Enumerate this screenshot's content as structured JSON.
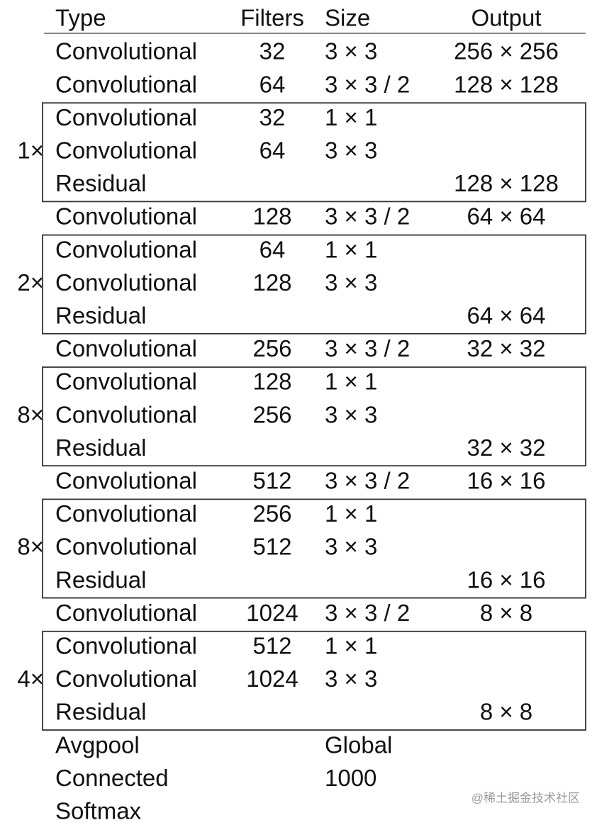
{
  "table": {
    "header": [
      "Type",
      "Filters",
      "Size",
      "Output"
    ],
    "body": [
      {
        "type": "Convolutional",
        "filters": "32",
        "size": "3 × 3",
        "output": "256 × 256"
      },
      {
        "type": "Convolutional",
        "filters": "64",
        "size": "3 × 3 / 2",
        "output": "128 × 128"
      },
      {
        "repeat": "1×",
        "rows": [
          {
            "type": "Convolutional",
            "filters": "32",
            "size": "1 × 1"
          },
          {
            "type": "Convolutional",
            "filters": "64",
            "size": "3 × 3"
          },
          {
            "type": "Residual",
            "output": "128 × 128"
          }
        ]
      },
      {
        "type": "Convolutional",
        "filters": "128",
        "size": "3 × 3 / 2",
        "output": "64 × 64"
      },
      {
        "repeat": "2×",
        "rows": [
          {
            "type": "Convolutional",
            "filters": "64",
            "size": "1 × 1"
          },
          {
            "type": "Convolutional",
            "filters": "128",
            "size": "3 × 3"
          },
          {
            "type": "Residual",
            "output": "64 × 64"
          }
        ]
      },
      {
        "type": "Convolutional",
        "filters": "256",
        "size": "3 × 3 / 2",
        "output": "32 × 32"
      },
      {
        "repeat": "8×",
        "rows": [
          {
            "type": "Convolutional",
            "filters": "128",
            "size": "1 × 1"
          },
          {
            "type": "Convolutional",
            "filters": "256",
            "size": "3 × 3"
          },
          {
            "type": "Residual",
            "output": "32 × 32"
          }
        ]
      },
      {
        "type": "Convolutional",
        "filters": "512",
        "size": "3 × 3 / 2",
        "output": "16 × 16"
      },
      {
        "repeat": "8×",
        "rows": [
          {
            "type": "Convolutional",
            "filters": "256",
            "size": "1 × 1"
          },
          {
            "type": "Convolutional",
            "filters": "512",
            "size": "3 × 3"
          },
          {
            "type": "Residual",
            "output": "16 × 16"
          }
        ]
      },
      {
        "type": "Convolutional",
        "filters": "1024",
        "size": "3 × 3 / 2",
        "output": "8 × 8"
      },
      {
        "repeat": "4×",
        "rows": [
          {
            "type": "Convolutional",
            "filters": "512",
            "size": "1 × 1"
          },
          {
            "type": "Convolutional",
            "filters": "1024",
            "size": "3 × 3"
          },
          {
            "type": "Residual",
            "output": "8 × 8"
          }
        ]
      },
      {
        "type": "Avgpool",
        "size": "Global"
      },
      {
        "type": "Connected",
        "size": "1000"
      },
      {
        "type": "Softmax"
      }
    ]
  },
  "watermark": "@稀土掘金技术社区"
}
